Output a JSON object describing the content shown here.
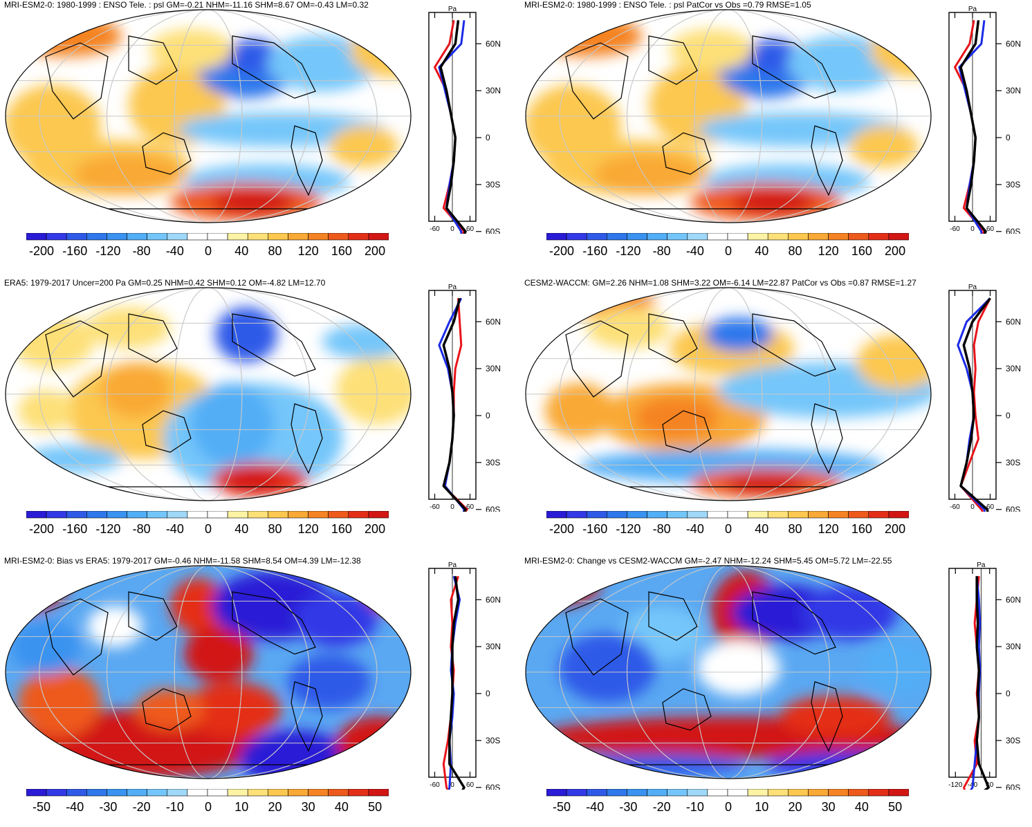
{
  "palette": [
    "#2a1bd6",
    "#3339e6",
    "#2f5ae8",
    "#2f78ec",
    "#3a93f0",
    "#52aef6",
    "#74c6fa",
    "#9fd8f8",
    "#ffffff",
    "#ffffff",
    "#fdf3a4",
    "#fde078",
    "#fcc84f",
    "#f9a935",
    "#f58324",
    "#ee5a1c",
    "#e42f18",
    "#d21614"
  ],
  "series_colors": {
    "model": "#e8141b",
    "obs": "#1a2be6",
    "all": "#000000"
  },
  "panels": [
    {
      "title": "MRI-ESM2-0: 1980-1999 : ENSO Tele. : psl GM=-0.21 NHM=-11.16 SHM=8.67 OM=-0.43 LM=0.32",
      "profile": {
        "unit": "Pa",
        "xticks": [
          "-60",
          "0",
          "60"
        ],
        "lat_labels": [
          "60N",
          "30N",
          "0",
          "30S",
          "60S"
        ]
      },
      "colorbar": {
        "labels": [
          "-200",
          "-160",
          "-120",
          "-80",
          "-40",
          "0",
          "40",
          "80",
          "120",
          "160",
          "200"
        ]
      }
    },
    {
      "title": "MRI-ESM2-0: 1980-1999 : ENSO Tele. : psl PatCor vs Obs =0.79 RMSE=1.05",
      "profile": {
        "unit": "Pa",
        "xticks": [
          "-60",
          "0",
          "60"
        ],
        "lat_labels": [
          "60N",
          "30N",
          "0",
          "30S",
          "60S"
        ]
      },
      "colorbar": {
        "labels": [
          "-200",
          "-160",
          "-120",
          "-80",
          "-40",
          "0",
          "40",
          "80",
          "120",
          "160",
          "200"
        ]
      }
    },
    {
      "title": "ERA5: 1979-2017 Uncer=200 Pa GM=0.25 NHM=0.42 SHM=0.12 OM=-4.82 LM=12.70",
      "profile": {
        "unit": "Pa",
        "xticks": [
          "-60",
          "0",
          "60"
        ],
        "lat_labels": [
          "60N",
          "30N",
          "0",
          "30S",
          "60S"
        ]
      },
      "colorbar": {
        "labels": [
          "-200",
          "-160",
          "-120",
          "-80",
          "-40",
          "0",
          "40",
          "80",
          "120",
          "160",
          "200"
        ]
      }
    },
    {
      "title": "CESM2-WACCM: GM=2.26 NHM=1.08 SHM=3.22 OM=-6.14 LM=22.87 PatCor vs Obs =0.87 RMSE=1.27",
      "profile": {
        "unit": "Pa",
        "xticks": [
          "-60",
          "0",
          "60"
        ],
        "lat_labels": [
          "60N",
          "30N",
          "0",
          "30S",
          "60S"
        ]
      },
      "colorbar": {
        "labels": [
          "-200",
          "-160",
          "-120",
          "-80",
          "-40",
          "0",
          "40",
          "80",
          "120",
          "160",
          "200"
        ]
      }
    },
    {
      "title": "MRI-ESM2-0: Bias vs ERA5: 1979-2017 GM=-0.46 NHM=-11.58 SHM=8.54 OM=4.39 LM=-12.38",
      "profile": {
        "unit": "Pa",
        "xticks": [
          "-60",
          "0",
          "60"
        ],
        "lat_labels": [
          "60N",
          "30N",
          "0",
          "30S",
          "60S"
        ]
      },
      "colorbar": {
        "labels": [
          "-50",
          "-40",
          "-30",
          "-20",
          "-10",
          "0",
          "10",
          "20",
          "30",
          "40",
          "50"
        ]
      }
    },
    {
      "title": "MRI-ESM2-0: Change vs CESM2-WACCM GM=-2.47 NHM=-12.24 SHM=5.45 OM=5.72 LM=-22.55",
      "profile": {
        "unit": "Pa",
        "xticks": [
          "-120",
          "-40",
          "40"
        ],
        "lat_labels": [
          "60N",
          "30N",
          "0",
          "30S",
          "60S"
        ]
      },
      "colorbar": {
        "labels": [
          "-50",
          "-40",
          "-30",
          "-20",
          "-10",
          "0",
          "10",
          "20",
          "30",
          "40",
          "50"
        ]
      }
    }
  ],
  "chart_data": [
    {
      "type": "heatmap",
      "title": "MRI-ESM2-0: 1980-1999 : ENSO Tele. : psl GM=-0.21 NHM=-11.16 SHM=8.67 OM=-0.43 LM=0.32",
      "units": "Pa",
      "colorbar_range": [
        -200,
        200
      ],
      "zonal_mean_profile": {
        "lat": [
          75,
          60,
          45,
          30,
          15,
          0,
          -15,
          -30,
          -45,
          -60,
          -70
        ],
        "model": [
          5,
          -10,
          -60,
          -20,
          -5,
          10,
          5,
          -10,
          -30,
          40,
          0
        ],
        "obs": [
          40,
          30,
          -45,
          -25,
          -5,
          10,
          5,
          -10,
          -20,
          30,
          30
        ],
        "all": [
          20,
          10,
          -40,
          -20,
          -5,
          10,
          5,
          -5,
          -20,
          45,
          20
        ]
      }
    },
    {
      "type": "heatmap",
      "title": "MRI-ESM2-0: 1980-1999 : ENSO Tele. : psl PatCor vs Obs =0.79 RMSE=1.05",
      "units": "Pa",
      "colorbar_range": [
        -200,
        200
      ],
      "zonal_mean_profile": {
        "lat": [
          75,
          60,
          45,
          30,
          15,
          0,
          -15,
          -30,
          -45,
          -60,
          -70
        ],
        "model": [
          5,
          -10,
          -60,
          -20,
          -5,
          10,
          5,
          -10,
          -30,
          40,
          0
        ],
        "obs": [
          40,
          30,
          -45,
          -25,
          -5,
          10,
          5,
          -10,
          -20,
          30,
          30
        ],
        "all": [
          20,
          10,
          -40,
          -20,
          -5,
          10,
          5,
          -5,
          -20,
          45,
          20
        ]
      }
    },
    {
      "type": "heatmap",
      "title": "ERA5: 1979-2017 Uncer=200 Pa GM=0.25 NHM=0.42 SHM=0.12 OM=-4.82 LM=12.70",
      "units": "Pa",
      "colorbar_range": [
        -200,
        200
      ],
      "zonal_mean_profile": {
        "lat": [
          75,
          60,
          45,
          30,
          15,
          0,
          -15,
          -30,
          -45,
          -60,
          -70
        ],
        "model": [
          20,
          25,
          30,
          10,
          5,
          5,
          0,
          -10,
          -30,
          50,
          10
        ],
        "obs": [
          30,
          -10,
          -45,
          -15,
          0,
          5,
          0,
          -10,
          -25,
          40,
          30
        ],
        "all": [
          25,
          5,
          -30,
          -10,
          0,
          5,
          0,
          -10,
          -30,
          45,
          20
        ]
      }
    },
    {
      "type": "heatmap",
      "title": "CESM2-WACCM: GM=2.26 NHM=1.08 SHM=3.22 OM=-6.14 LM=22.87 PatCor vs Obs =0.87 RMSE=1.27",
      "units": "Pa",
      "colorbar_range": [
        -200,
        200
      ],
      "zonal_mean_profile": {
        "lat": [
          75,
          60,
          45,
          30,
          15,
          0,
          -15,
          -30,
          -45,
          -60,
          -70
        ],
        "model": [
          60,
          20,
          5,
          10,
          5,
          10,
          20,
          -10,
          -40,
          30,
          60
        ],
        "obs": [
          60,
          -20,
          -50,
          -20,
          0,
          5,
          -10,
          -20,
          -40,
          40,
          50
        ],
        "all": [
          60,
          0,
          -30,
          -10,
          0,
          5,
          -5,
          -20,
          -40,
          50,
          60
        ]
      }
    },
    {
      "type": "heatmap",
      "title": "MRI-ESM2-0: Bias vs ERA5: 1979-2017 GM=-0.46 NHM=-11.58 SHM=8.54 OM=4.39 LM=-12.38",
      "units": "Pa",
      "colorbar_range": [
        -50,
        50
      ],
      "zonal_mean_profile": {
        "lat": [
          75,
          60,
          45,
          30,
          15,
          0,
          -15,
          -30,
          -45,
          -60,
          -70
        ],
        "model": [
          20,
          -5,
          0,
          -5,
          5,
          0,
          -5,
          -15,
          -30,
          -20,
          10
        ],
        "obs": [
          5,
          25,
          10,
          0,
          -5,
          5,
          0,
          -10,
          -5,
          -10,
          -20
        ],
        "all": [
          10,
          20,
          5,
          0,
          0,
          0,
          -5,
          -10,
          -10,
          40,
          10
        ]
      }
    },
    {
      "type": "heatmap",
      "title": "MRI-ESM2-0: Change vs CESM2-WACCM GM=-2.47 NHM=-12.24 SHM=5.45 OM=5.72 LM=-22.55",
      "units": "Pa",
      "colorbar_range": [
        -50,
        50
      ],
      "zonal_mean_profile": {
        "lat": [
          75,
          60,
          45,
          30,
          15,
          0,
          -15,
          -30,
          -45,
          -60,
          -70
        ],
        "model": [
          -10,
          -20,
          -30,
          -20,
          -10,
          -20,
          -10,
          -30,
          -20,
          -80,
          -60
        ],
        "obs": [
          -20,
          -10,
          -5,
          -10,
          -5,
          -10,
          -10,
          -20,
          -30,
          -40,
          -90
        ],
        "all": [
          -20,
          -20,
          -15,
          -20,
          -10,
          -15,
          -10,
          -20,
          -10,
          35,
          -60
        ]
      }
    }
  ]
}
